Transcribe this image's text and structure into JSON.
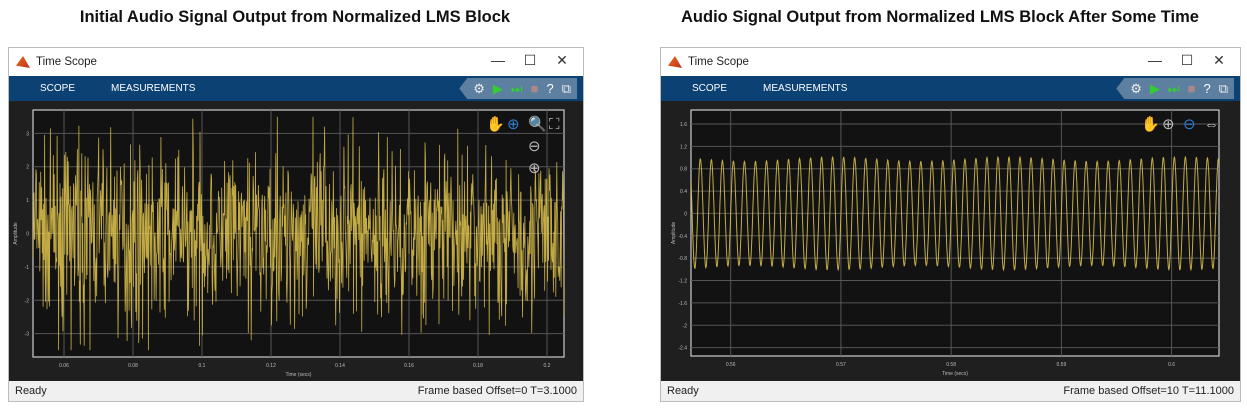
{
  "captions": [
    "Initial Audio Signal Output from Normalized LMS Block",
    "Audio Signal Output from Normalized LMS Block After Some Time"
  ],
  "windows": [
    {
      "title": "Time Scope",
      "tabs": [
        "SCOPE",
        "MEASUREMENTS"
      ],
      "status_left": "Ready",
      "status_right": "Frame based  Offset=0  T=3.1000"
    },
    {
      "title": "Time Scope",
      "tabs": [
        "SCOPE",
        "MEASUREMENTS"
      ],
      "status_left": "Ready",
      "status_right": "Frame based  Offset=10  T=11.1000"
    }
  ],
  "window_controls": {
    "minimize": "—",
    "maximize": "☐",
    "close": "✕"
  },
  "toolbar_icons": [
    "settings-icon",
    "run-icon",
    "step-forward-icon",
    "stop-icon",
    "help-icon",
    "undock-icon"
  ],
  "colors": {
    "ribbon": "#0b4173",
    "plot_bg": "#121212",
    "signal": "#e3c74e"
  },
  "chart_data": [
    {
      "type": "line",
      "xlabel": "Time (secs)",
      "ylabel": "Amplitude",
      "x_ticks": [
        "0.06",
        "0.08",
        "0.1",
        "0.12",
        "0.14",
        "0.16",
        "0.18",
        "0.2"
      ],
      "y_ticks": [
        "3",
        "2",
        "1",
        "0",
        "-1",
        "-2",
        "-3"
      ],
      "ylim": [
        -3.7,
        3.7
      ],
      "grid": true,
      "signal": "noise",
      "amplitude_peak": 3.5
    },
    {
      "type": "line",
      "xlabel": "Time (secs)",
      "ylabel": "Amplitude",
      "x_ticks": [
        "0.56",
        "0.57",
        "0.58",
        "0.59",
        "0.6"
      ],
      "x_tick_values": [
        0.56,
        0.57,
        0.58,
        0.59,
        0.6
      ],
      "xlim": [
        0.5564,
        0.6043
      ],
      "y_ticks": [
        "1.6",
        "1.2",
        "0.8",
        "0.4",
        "0",
        "-0.4",
        "-0.8",
        "-1.2",
        "-1.6",
        "-2",
        "-2.4"
      ],
      "ylim": [
        -2.55,
        1.85
      ],
      "grid": true,
      "signal": "sine",
      "frequency_hz": 1000,
      "amplitude": 0.97
    }
  ]
}
